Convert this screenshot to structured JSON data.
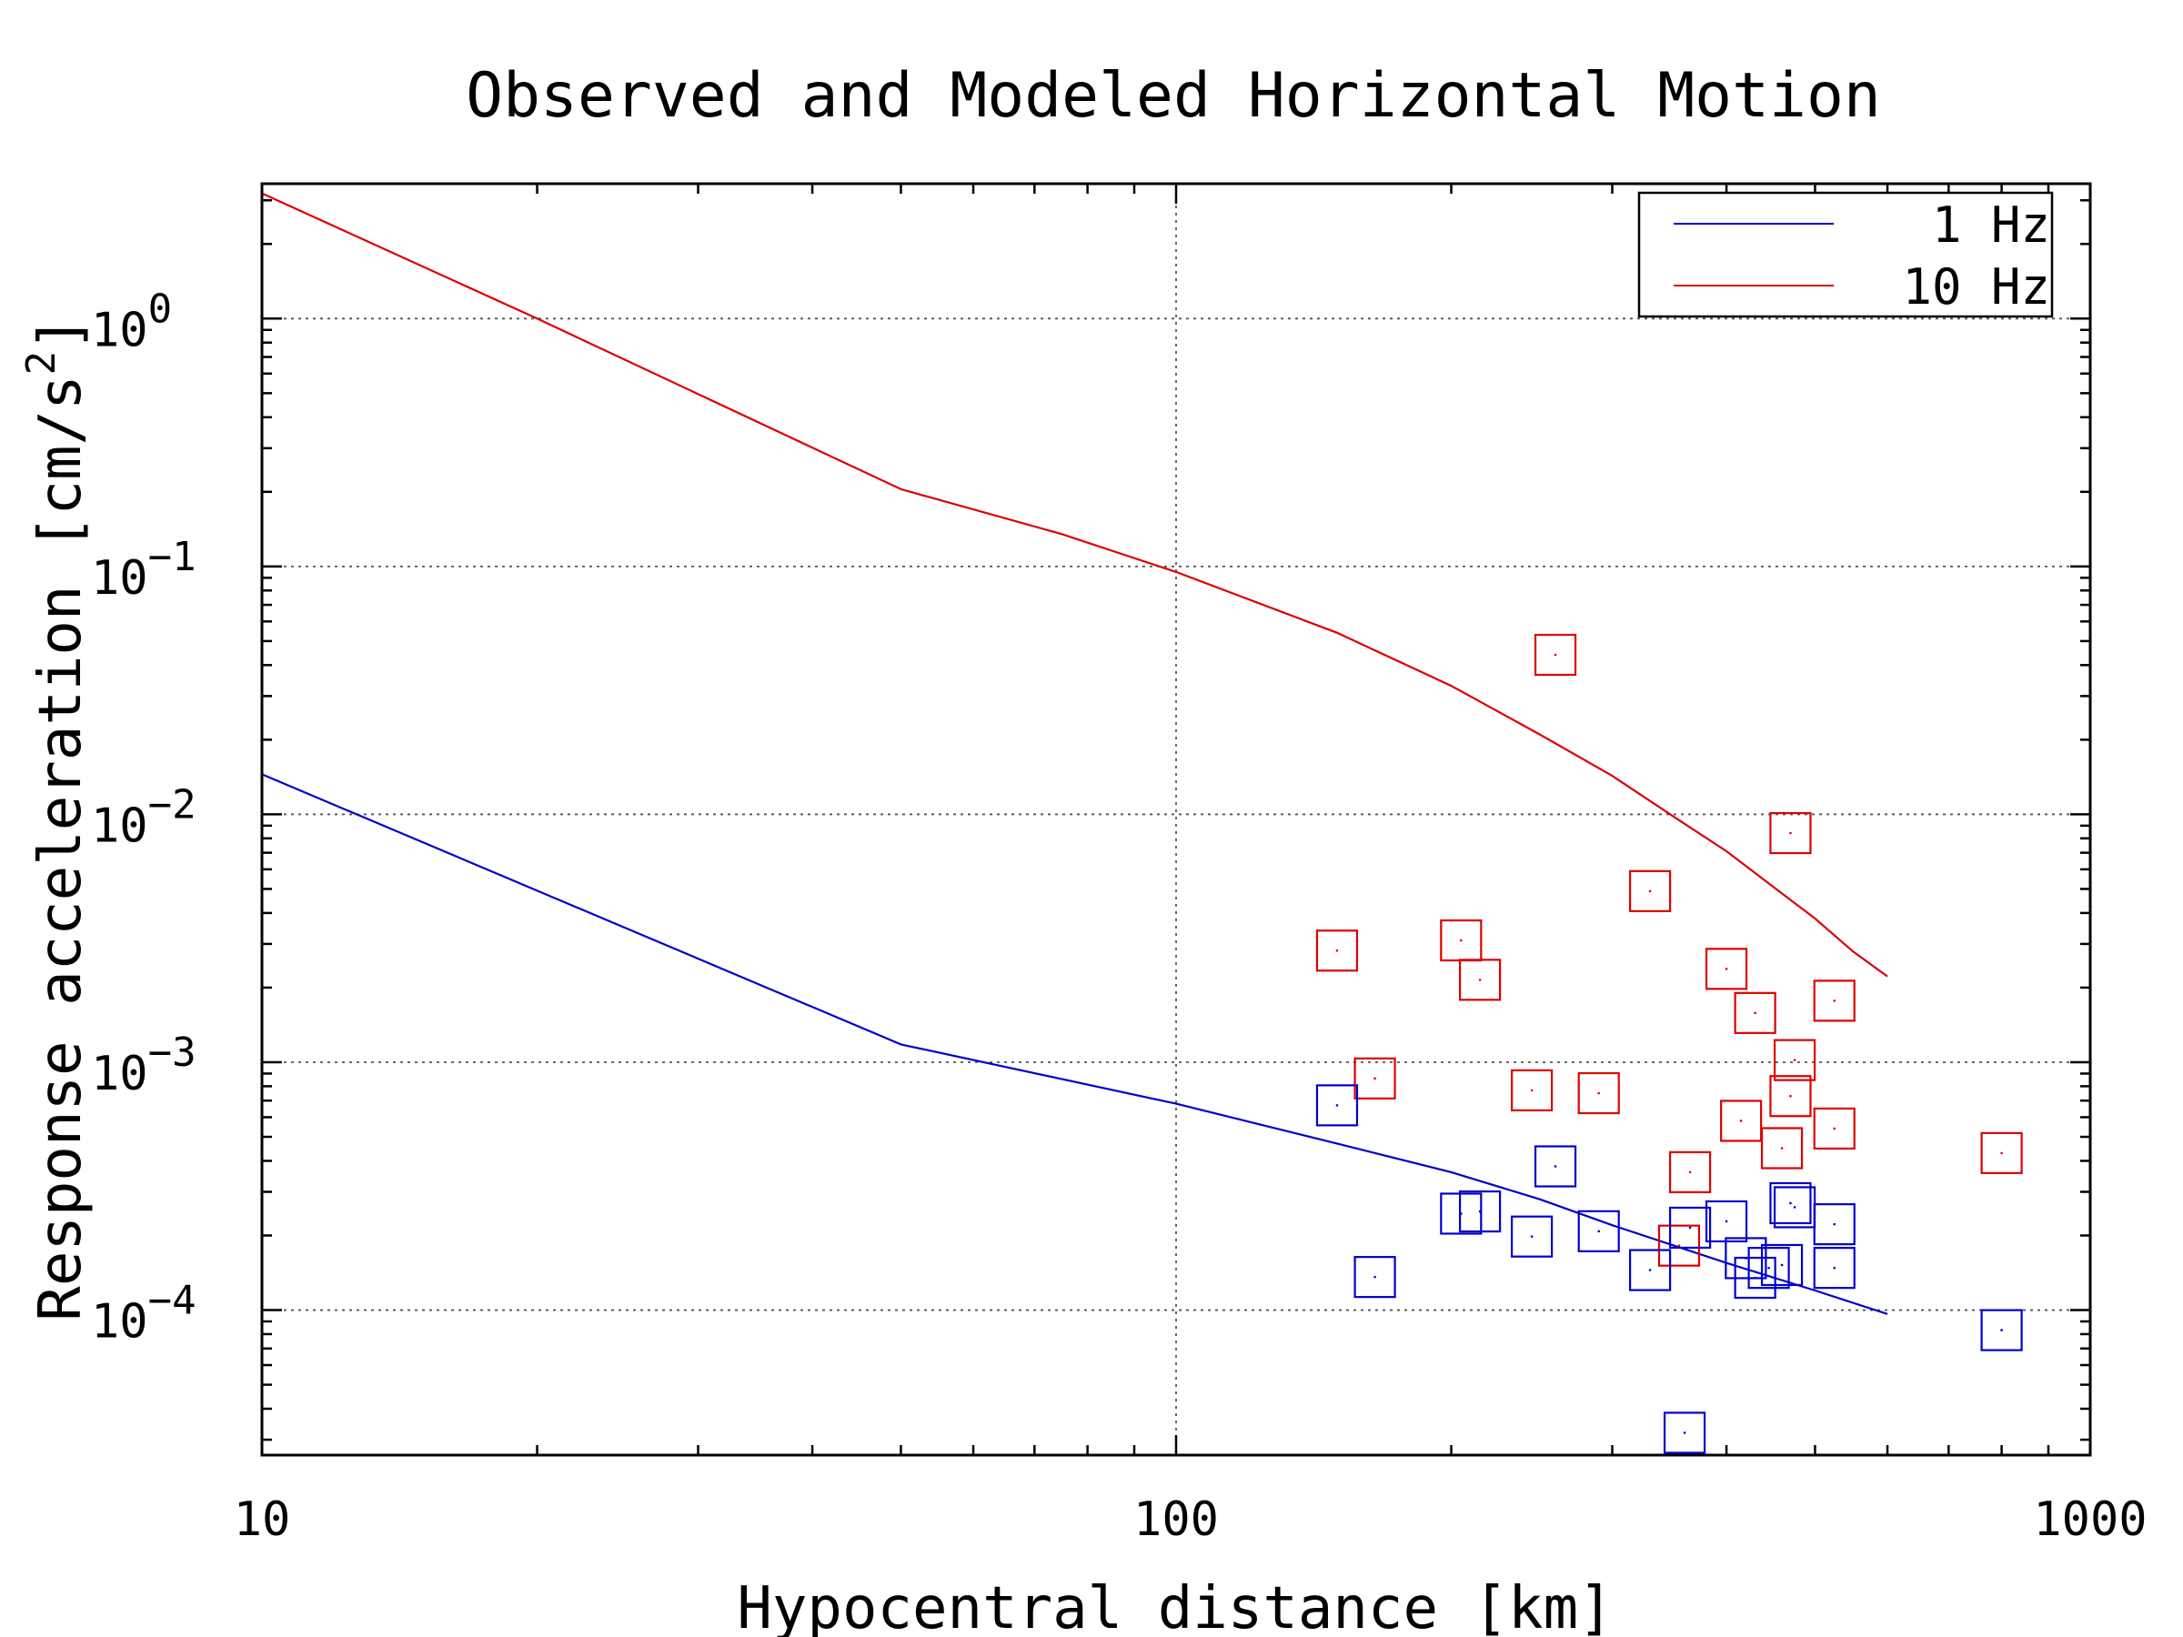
{
  "chart_data": {
    "type": "scatter",
    "title": "Observed and Modeled Horizontal Motion",
    "xlabel": "Hypocentral distance [km]",
    "ylabel_main": "Response acceleration [cm/s",
    "ylabel_sup": "2",
    "ylabel_close": "]",
    "xscale": "log",
    "yscale": "log",
    "xlim": [
      10,
      1000
    ],
    "ylim": [
      2.6e-05,
      3.5
    ],
    "grid": true,
    "legend_position": "top-right",
    "x_ticks": [
      {
        "value": 10,
        "label": "10"
      },
      {
        "value": 100,
        "label": "100"
      },
      {
        "value": 1000,
        "label": "1000"
      }
    ],
    "y_ticks": [
      {
        "value": 1,
        "base": "10",
        "exp": "0"
      },
      {
        "value": 0.1,
        "base": "10",
        "exp": "−1"
      },
      {
        "value": 0.01,
        "base": "10",
        "exp": "−2"
      },
      {
        "value": 0.001,
        "base": "10",
        "exp": "−3"
      },
      {
        "value": 0.0001,
        "base": "10",
        "exp": "−4"
      }
    ],
    "lines": [
      {
        "name": "1 Hz",
        "color": "#0000cc",
        "points": [
          [
            10,
            0.0145
          ],
          [
            50,
            0.00118
          ],
          [
            100,
            0.00068
          ],
          [
            150,
            0.00047
          ],
          [
            200,
            0.00036
          ],
          [
            250,
            0.00028
          ],
          [
            300,
            0.00022
          ],
          [
            400,
            0.000155
          ],
          [
            500,
            0.00012
          ],
          [
            600,
            9.65e-05
          ]
        ]
      },
      {
        "name": "10 Hz",
        "color": "#dd0000",
        "points": [
          [
            10,
            3.2
          ],
          [
            20,
            1.0
          ],
          [
            50,
            0.205
          ],
          [
            75,
            0.135
          ],
          [
            100,
            0.095
          ],
          [
            150,
            0.054
          ],
          [
            200,
            0.033
          ],
          [
            250,
            0.021
          ],
          [
            300,
            0.0143
          ],
          [
            350,
            0.0098
          ],
          [
            400,
            0.0071
          ],
          [
            450,
            0.0051
          ],
          [
            500,
            0.0038
          ],
          [
            550,
            0.0028
          ],
          [
            600,
            0.00222
          ]
        ]
      }
    ],
    "scatter": [
      {
        "name": "10 Hz observed",
        "color": "#dd0000",
        "points": [
          [
            260,
            0.044
          ],
          [
            470,
            0.0084
          ],
          [
            330,
            0.0049
          ],
          [
            205,
            0.0031
          ],
          [
            150,
            0.00282
          ],
          [
            215,
            0.00215
          ],
          [
            400,
            0.00238
          ],
          [
            430,
            0.00158
          ],
          [
            525,
            0.00177
          ],
          [
            475,
            0.00102
          ],
          [
            165,
            0.00086
          ],
          [
            245,
            0.00077
          ],
          [
            290,
            0.00075
          ],
          [
            470,
            0.00073
          ],
          [
            415,
            0.00058
          ],
          [
            525,
            0.00054
          ],
          [
            460,
            0.00045
          ],
          [
            365,
            0.00036
          ],
          [
            800,
            0.00043
          ],
          [
            355,
            0.000182
          ]
        ]
      },
      {
        "name": "1 Hz observed",
        "color": "#0000cc",
        "points": [
          [
            150,
            0.00067
          ],
          [
            260,
            0.00038
          ],
          [
            205,
            0.000245
          ],
          [
            215,
            0.00025
          ],
          [
            245,
            0.000198
          ],
          [
            290,
            0.000208
          ],
          [
            365,
            0.000215
          ],
          [
            400,
            0.000228
          ],
          [
            470,
            0.00027
          ],
          [
            475,
            0.00026
          ],
          [
            525,
            0.000222
          ],
          [
            420,
            0.000162
          ],
          [
            445,
            0.000148
          ],
          [
            460,
            0.000152
          ],
          [
            525,
            0.000148
          ],
          [
            330,
            0.000145
          ],
          [
            165,
            0.000136
          ],
          [
            430,
            0.000135
          ],
          [
            800,
            8.3e-05
          ],
          [
            360,
            3.2e-05
          ]
        ]
      }
    ],
    "legend": [
      {
        "label": "1 Hz",
        "color": "#0000cc"
      },
      {
        "label": "10 Hz",
        "color": "#dd0000"
      }
    ]
  }
}
